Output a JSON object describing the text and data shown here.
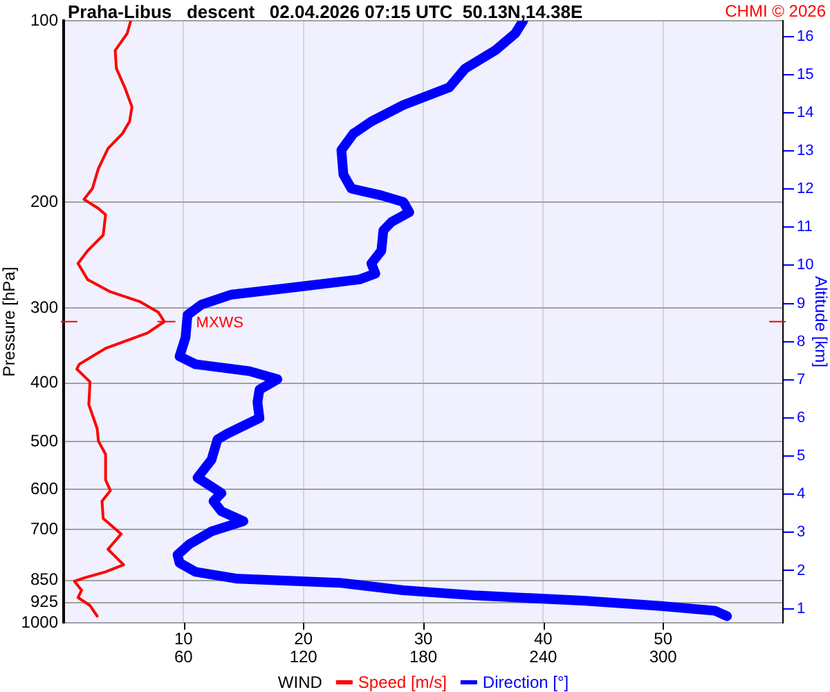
{
  "chart_data": {
    "type": "line",
    "title": "Praha-Libus   descent   02.04.2026 07:15 UTC  50.13N,14.38E",
    "xlabel": "WIND",
    "ylabel": "Pressure [hPa]",
    "y2label": "Altitude [km]",
    "annotations": [
      "CHMI © 2026"
    ],
    "xlim": [
      0,
      60
    ],
    "xticks": [
      10,
      20,
      30,
      40,
      50
    ],
    "x2lim": [
      0,
      360
    ],
    "x2ticks": [
      60,
      120,
      180,
      240,
      300
    ],
    "ylim": [
      1000,
      100
    ],
    "yticks": [
      100,
      200,
      300,
      400,
      500,
      600,
      700,
      850,
      925,
      1000
    ],
    "y2lim": [
      0.63,
      16.41
    ],
    "y2ticks": [
      1,
      2,
      3,
      4,
      5,
      6,
      7,
      8,
      9,
      10,
      11,
      12,
      13,
      14,
      15,
      16
    ],
    "log": "y",
    "grid": true,
    "legend": "bottom",
    "marker": "none",
    "line_style": "solid",
    "ref_lines": [
      {
        "axis": "y",
        "value": 316,
        "label": "MXWS",
        "color": "#ff0000"
      }
    ],
    "series": [
      {
        "name": "Speed [m/s]",
        "color": "#ff0000",
        "x": [
          5.6,
          5.3,
          4.3,
          4.4,
          5.1,
          5.7,
          5.5,
          4.9,
          3.7,
          2.9,
          2.4,
          1.7,
          2.9,
          3.5,
          3.3,
          2.0,
          1.2,
          2.0,
          3.9,
          6.4,
          7.9,
          8.4,
          7.0,
          3.5,
          1.3,
          1.1,
          2.2,
          2.1,
          2.8,
          2.9,
          3.5,
          3.5,
          3.9,
          3.2,
          3.3,
          4.8,
          3.7,
          5.0,
          3.5,
          1.8,
          0.9,
          1.5,
          1.2,
          2.2,
          2.8
        ],
        "values": [
          100,
          105,
          112,
          120,
          129,
          139,
          147,
          154,
          163,
          176,
          190,
          198,
          205,
          210,
          227,
          241,
          253,
          269,
          282,
          293,
          305,
          316,
          330,
          350,
          372,
          379,
          398,
          434,
          476,
          499,
          525,
          579,
          603,
          628,
          671,
          712,
          755,
          801,
          823,
          841,
          853,
          883,
          908,
          936,
          975
        ]
      },
      {
        "name": "Direction [°]",
        "color": "#0000ff",
        "axis": "x2",
        "x": [
          230,
          226,
          216,
          201,
          193,
          170,
          154,
          145,
          139,
          140,
          144,
          159,
          170,
          173,
          164,
          160,
          159,
          154,
          156,
          148,
          116,
          84,
          69,
          62,
          61,
          58,
          66,
          93,
          107,
          98,
          97,
          98,
          82,
          77,
          74,
          67,
          79,
          75,
          79,
          90,
          74,
          63,
          57,
          58,
          66,
          87,
          138,
          170,
          207,
          260,
          299,
          326,
          332
        ],
        "values": [
          100,
          105,
          112,
          120,
          129,
          138,
          147,
          154,
          164,
          180,
          190,
          195,
          200,
          208,
          216,
          223,
          241,
          253,
          263,
          269,
          277,
          285,
          296,
          308,
          336,
          361,
          372,
          382,
          394,
          410,
          430,
          457,
          485,
          496,
          536,
          574,
          609,
          628,
          653,
          678,
          705,
          740,
          771,
          795,
          823,
          845,
          858,
          883,
          901,
          919,
          938,
          955,
          975
        ]
      }
    ]
  }
}
